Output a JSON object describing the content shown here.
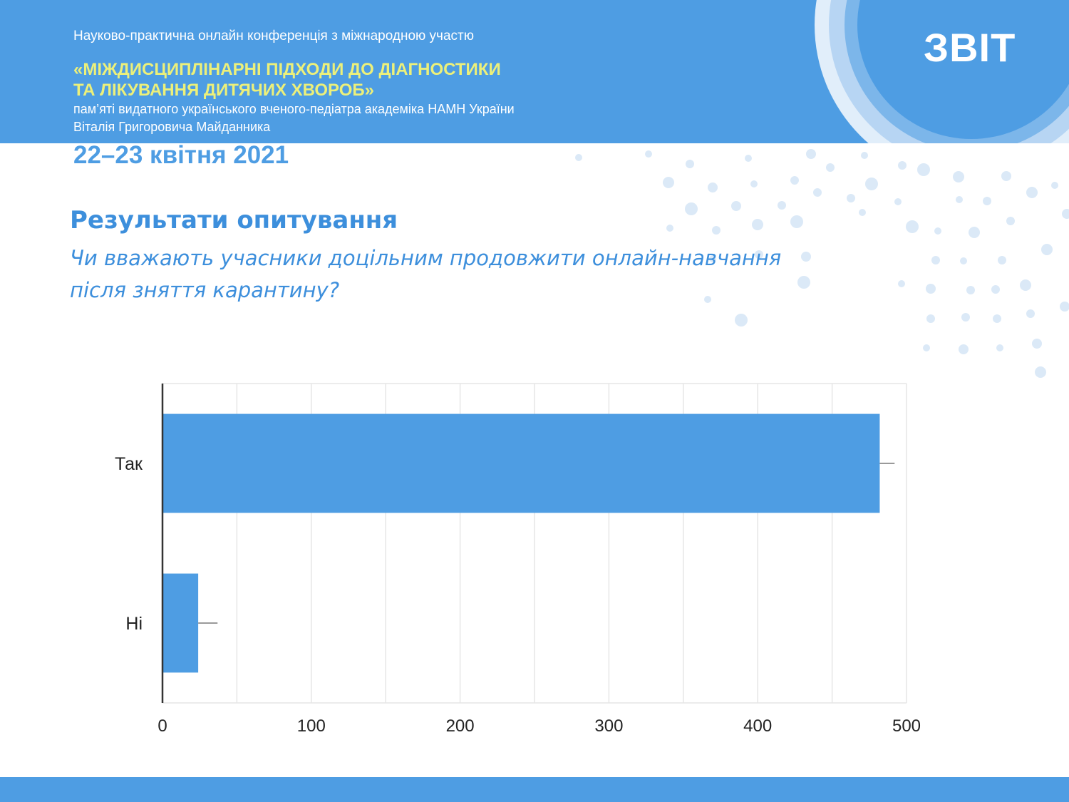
{
  "header": {
    "conference_line": "Науково-практична онлайн конференція з міжнародною участю",
    "title_line1": "«МІЖДИСЦИПЛІНАРНІ ПІДХОДИ ДО ДІАГНОСТИКИ",
    "title_line2": "ТА ЛІКУВАННЯ ДИТЯЧИХ ХВОРОБ»",
    "memorial_line1": "пам’яті видатного українського вченого-педіатра академіка НАМН України",
    "memorial_line2": "Віталія Григоровича Майданника",
    "date": "22–23 квітня 2021",
    "report_label": "ЗВІТ"
  },
  "section": {
    "title": "Результати опитування",
    "question_line1": "Чи вважають учасники доцільним продовжити онлайн-навчання",
    "question_line2": "після зняття карантину?"
  },
  "colors": {
    "brand_blue": "#4e9de3",
    "title_blue": "#3d8fdc",
    "header_yellow": "#ecf07a",
    "bar_blue": "#4e9de3"
  },
  "chart_data": {
    "type": "bar",
    "orientation": "horizontal",
    "categories": [
      "Так",
      "Ні"
    ],
    "values": [
      482,
      24
    ],
    "error_upper": [
      492,
      37
    ],
    "xlim": [
      0,
      500
    ],
    "xticks": [
      0,
      100,
      200,
      300,
      400,
      500
    ],
    "grid": true
  }
}
